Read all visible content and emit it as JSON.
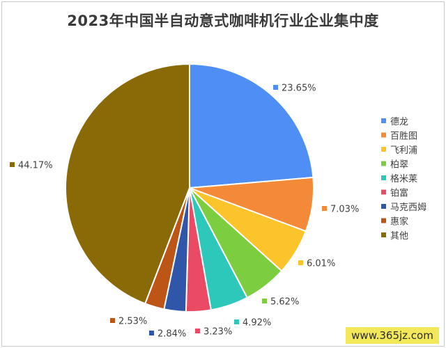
{
  "chart_data": {
    "type": "pie",
    "title": "2023年中国半自动意式咖啡机行业企业集中度",
    "legend_position": "right",
    "slices": [
      {
        "label": "德龙",
        "value": 23.65,
        "value_label": "23.65%",
        "color": "#4f8ff5"
      },
      {
        "label": "百胜图",
        "value": 7.03,
        "value_label": "7.03%",
        "color": "#f48a38"
      },
      {
        "label": "飞利浦",
        "value": 6.01,
        "value_label": "6.01%",
        "color": "#fbc42a"
      },
      {
        "label": "柏翠",
        "value": 5.62,
        "value_label": "5.62%",
        "color": "#7ccd3f"
      },
      {
        "label": "格米莱",
        "value": 4.92,
        "value_label": "4.92%",
        "color": "#2dc8b9"
      },
      {
        "label": "铂富",
        "value": 3.23,
        "value_label": "3.23%",
        "color": "#ea4a63"
      },
      {
        "label": "马克西姆",
        "value": 2.84,
        "value_label": "2.84%",
        "color": "#2f56a9"
      },
      {
        "label": "惠家",
        "value": 2.53,
        "value_label": "2.53%",
        "color": "#bc5516"
      },
      {
        "label": "其他",
        "value": 44.17,
        "value_label": "44.17%",
        "color": "#8a6a07"
      }
    ]
  },
  "watermark": {
    "text": "www.365jz.com",
    "color": "#f2e85a"
  }
}
